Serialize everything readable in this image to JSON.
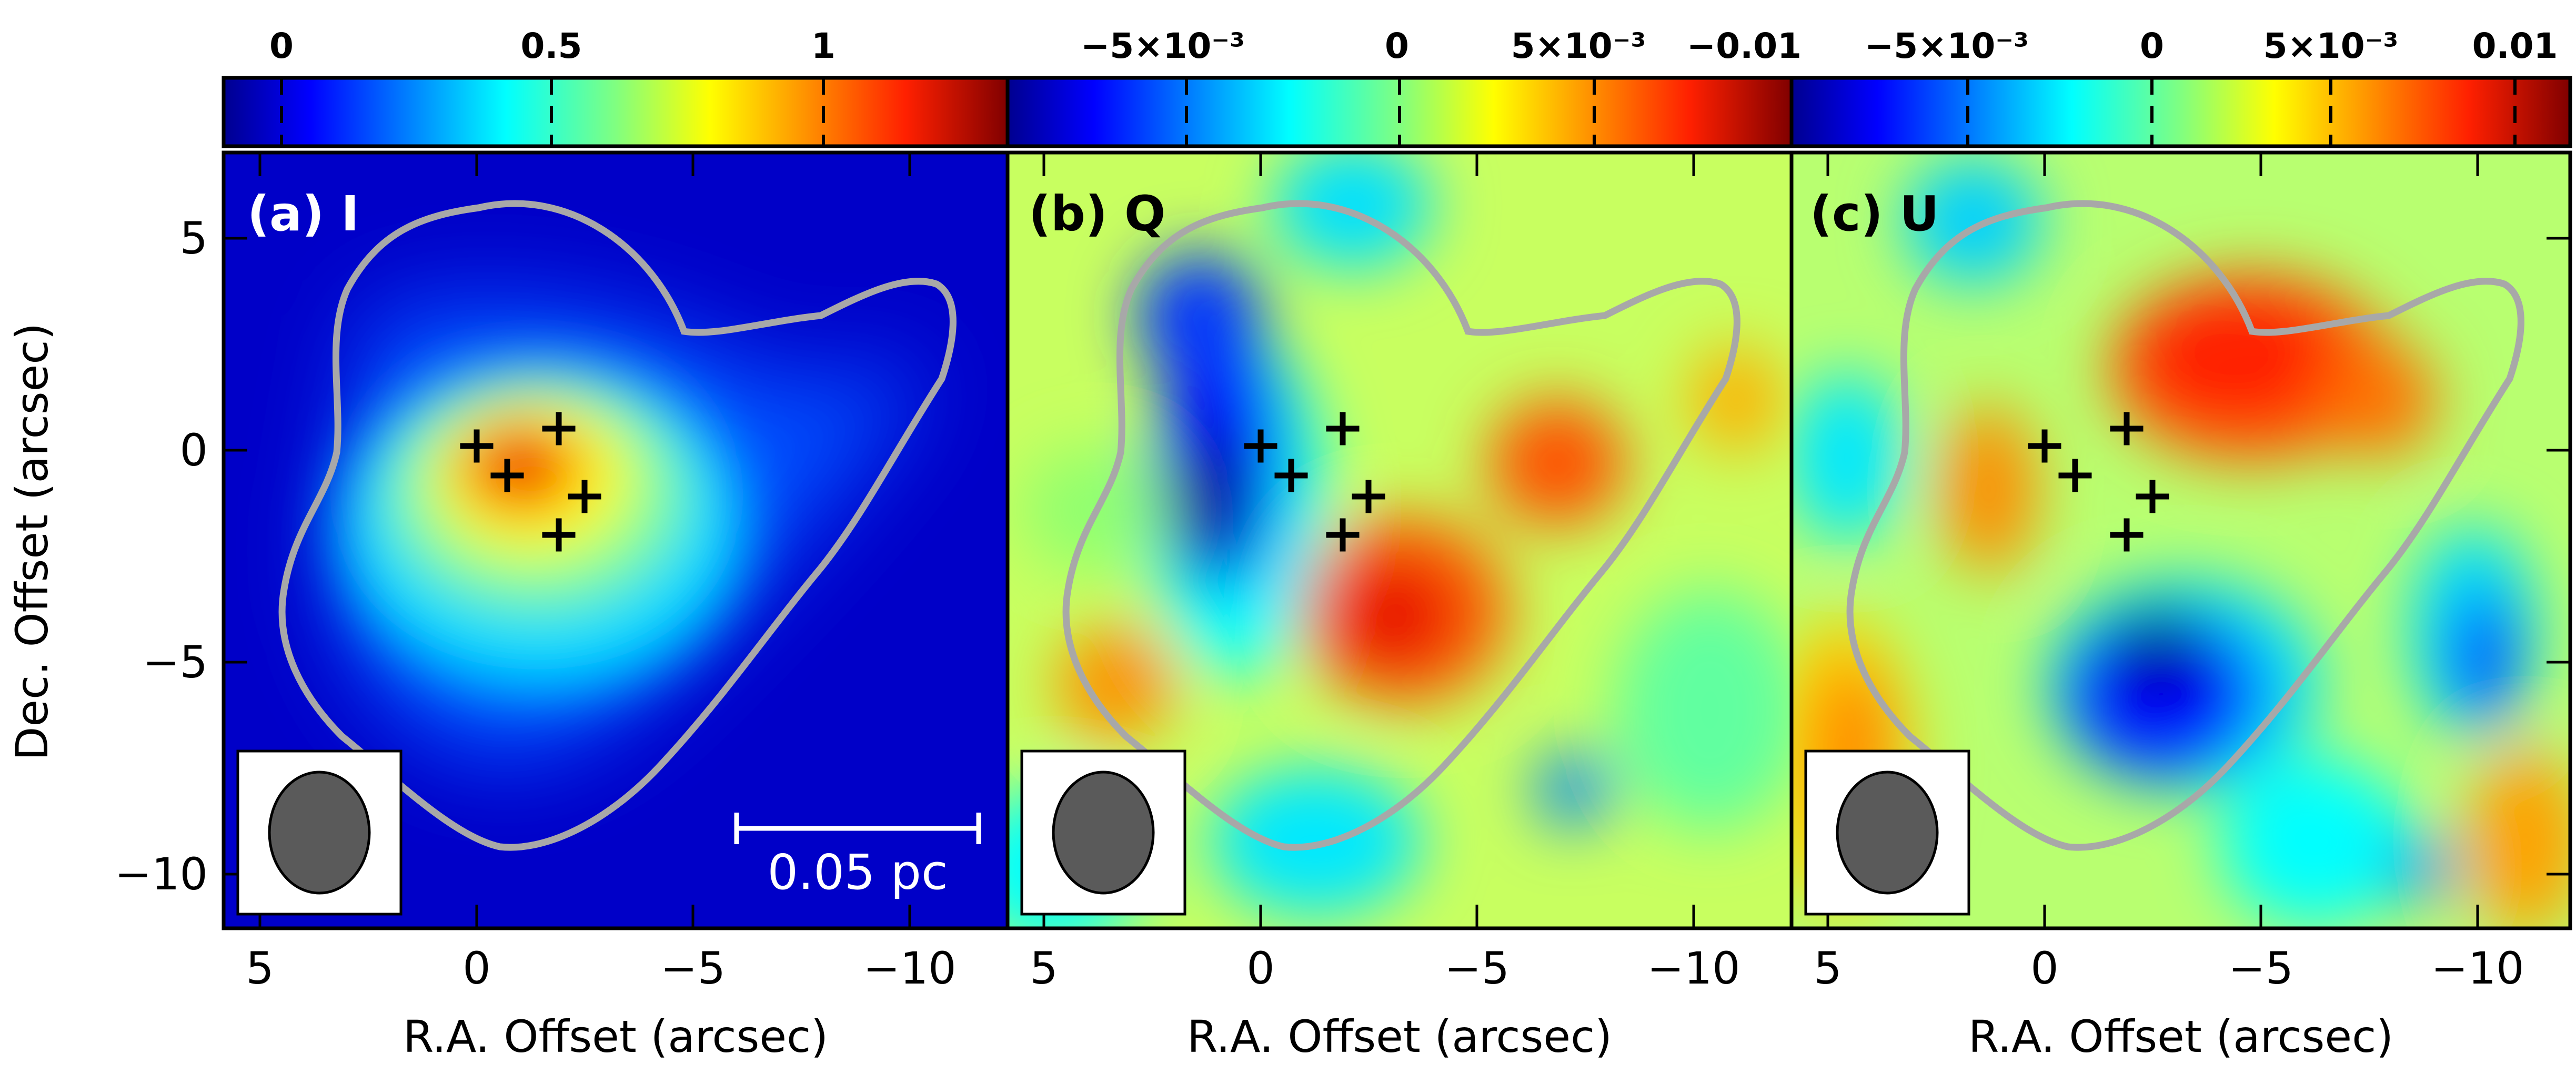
{
  "figure": {
    "panels": [
      {
        "id": "a",
        "label": "(a) I",
        "colorbar_ticks": [
          "0",
          "0.5",
          "1"
        ],
        "colorbar_range": [
          -0.15,
          1.3
        ],
        "beam_box": true,
        "scale_bar_label": "0.05 pc"
      },
      {
        "id": "b",
        "label": "(b) Q",
        "colorbar_ticks": [
          "−5×10⁻³",
          "0",
          "5×10⁻³"
        ],
        "colorbar_range": [
          -0.0125,
          0.0125
        ],
        "beam_box": true
      },
      {
        "id": "c",
        "label": "(c) U",
        "colorbar_ticks": [
          "−0.01",
          "−5×10⁻³",
          "0",
          "5×10⁻³",
          "0.01"
        ],
        "colorbar_range": [
          -0.0125,
          0.0125
        ],
        "beam_box": true
      }
    ],
    "x_axis": {
      "label": "R.A. Offset (arcsec)",
      "tick_labels": [
        "5",
        "0",
        "−5",
        "−10"
      ],
      "range": [
        6.2,
        -12.2
      ]
    },
    "y_axis": {
      "label": "Dec. Offset (arcsec)",
      "tick_labels": [
        "5",
        "0",
        "−5",
        "−10"
      ],
      "range": [
        -11.5,
        6.8
      ]
    },
    "source_markers": [
      {
        "x": 0.0,
        "y": 0.1
      },
      {
        "x": -0.7,
        "y": -0.6
      },
      {
        "x": -1.9,
        "y": 0.5
      },
      {
        "x": -2.5,
        "y": -1.1
      },
      {
        "x": -1.9,
        "y": -2.0
      }
    ],
    "colors": {
      "contour": "#a8a8a8",
      "marker": "#000000",
      "beam_fill": "#5a5a5a",
      "label_light": "#ffffff",
      "label_dark": "#000000"
    }
  }
}
